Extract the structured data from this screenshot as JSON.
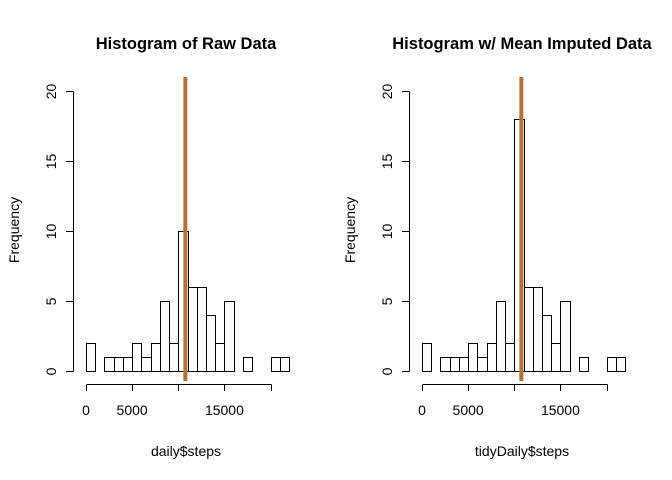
{
  "chart_data": [
    {
      "type": "bar",
      "title": "Histogram of Raw Data",
      "xlabel": "daily$steps",
      "ylabel": "Frequency",
      "bin_width": 1000,
      "bin_start": 0,
      "counts": [
        2,
        0,
        1,
        1,
        1,
        2,
        1,
        2,
        5,
        2,
        10,
        6,
        6,
        4,
        2,
        5,
        0,
        1,
        0,
        0,
        1,
        1
      ],
      "mean_line": 10766.19,
      "mean_color": "#B8722C",
      "xlim": [
        0,
        22000
      ],
      "ylim": [
        0,
        20
      ],
      "xticks": [
        0,
        5000,
        15000
      ],
      "xtick_labels": [
        "0",
        "5000",
        "15000"
      ],
      "xtick_marks": [
        0,
        5000,
        10000,
        15000,
        20000
      ],
      "yticks": [
        0,
        5,
        10,
        15,
        20
      ],
      "ytick_labels": [
        "0",
        "5",
        "10",
        "15",
        "20"
      ],
      "grid": false,
      "legend": "none"
    },
    {
      "type": "bar",
      "title": "Histogram w/ Mean Imputed Data",
      "xlabel": "tidyDaily$steps",
      "ylabel": "Frequency",
      "bin_width": 1000,
      "bin_start": 0,
      "counts": [
        2,
        0,
        1,
        1,
        1,
        2,
        1,
        2,
        5,
        2,
        18,
        6,
        6,
        4,
        2,
        5,
        0,
        1,
        0,
        0,
        1,
        1
      ],
      "mean_line": 10766.19,
      "mean_color": "#B8722C",
      "xlim": [
        0,
        22000
      ],
      "ylim": [
        0,
        20
      ],
      "xticks": [
        0,
        5000,
        15000
      ],
      "xtick_labels": [
        "0",
        "5000",
        "15000"
      ],
      "xtick_marks": [
        0,
        5000,
        10000,
        15000,
        20000
      ],
      "yticks": [
        0,
        5,
        10,
        15,
        20
      ],
      "ytick_labels": [
        "0",
        "5",
        "10",
        "15",
        "20"
      ],
      "grid": false,
      "legend": "none"
    }
  ]
}
